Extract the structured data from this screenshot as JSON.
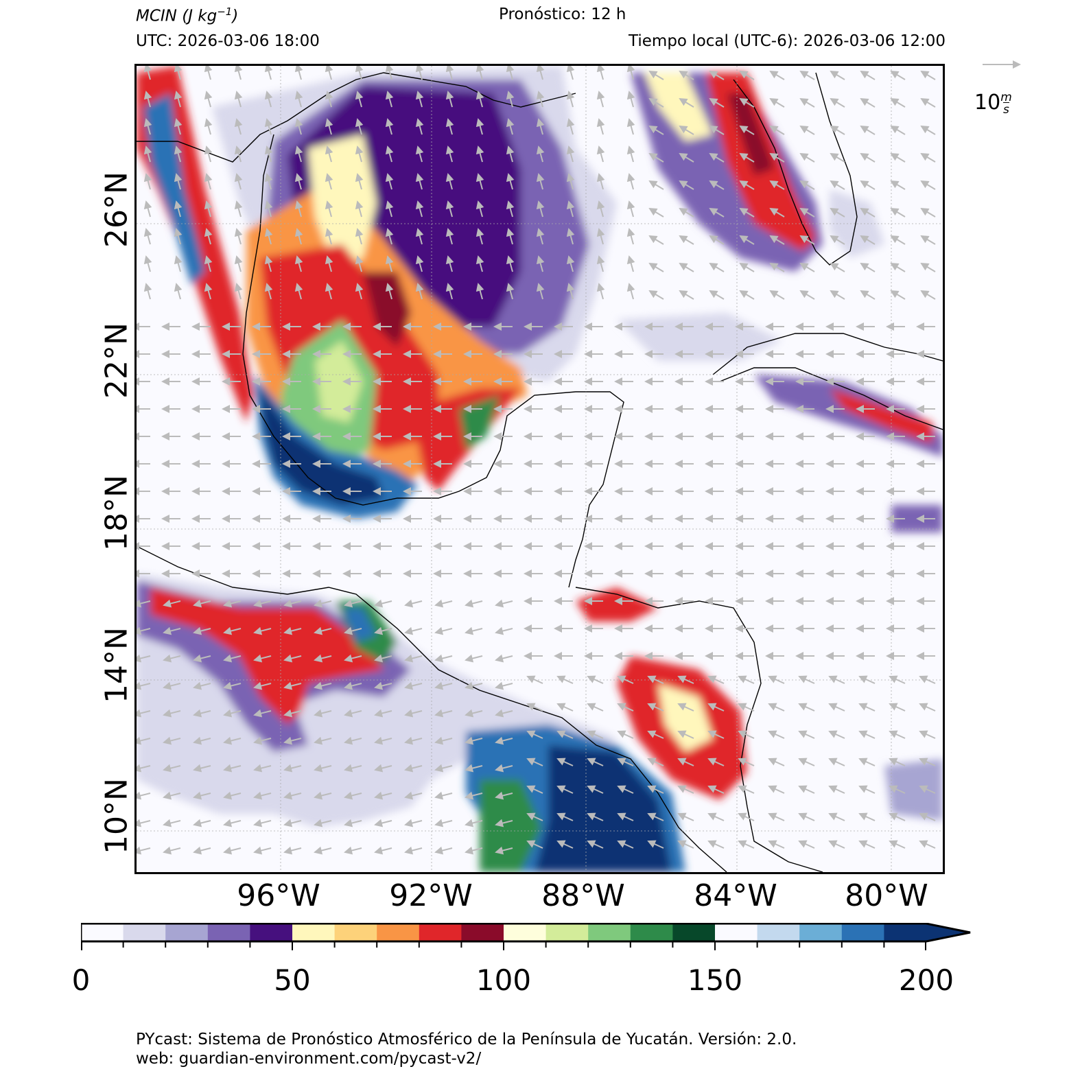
{
  "header": {
    "variable": "MCIN",
    "units_base": "J kg",
    "units_exp": "−1",
    "forecast": "Pronóstico: 12 h",
    "utc": "UTC:  2026-03-06 18:00",
    "local": "Tiempo local (UTC-6): 2026-03-06 12:00"
  },
  "map": {
    "lat_labels": [
      "26°N",
      "22°N",
      "18°N",
      "14°N",
      "10°N"
    ],
    "lon_labels": [
      "96°W",
      "92°W",
      "88°W",
      "84°W",
      "80°W"
    ]
  },
  "wind_reference": {
    "value": "10",
    "unit_num": "m",
    "unit_den": "s"
  },
  "colorbar": {
    "ticks": [
      "0",
      "50",
      "100",
      "150",
      "200"
    ],
    "min": 0,
    "max": 200,
    "step": 10,
    "extend": "max",
    "colors": [
      "#fafaff",
      "#d9d9ec",
      "#a7a5d2",
      "#7a63b3",
      "#46107e",
      "#fff7bc",
      "#fdd27a",
      "#f99545",
      "#e0262a",
      "#8a0b2a",
      "#fefedc",
      "#d3ec9a",
      "#7fc97d",
      "#2e8b4a",
      "#07482a",
      "#fafaff",
      "#c3d9ee",
      "#6baed6",
      "#2b72b5",
      "#0c3373"
    ]
  },
  "footer": {
    "line1": "PYcast: Sistema de Pronóstico Atmosférico de la Península de Yucatán. Versión: 2.0.",
    "line2": "web: guardian-environment.com/pycast-v2/"
  }
}
